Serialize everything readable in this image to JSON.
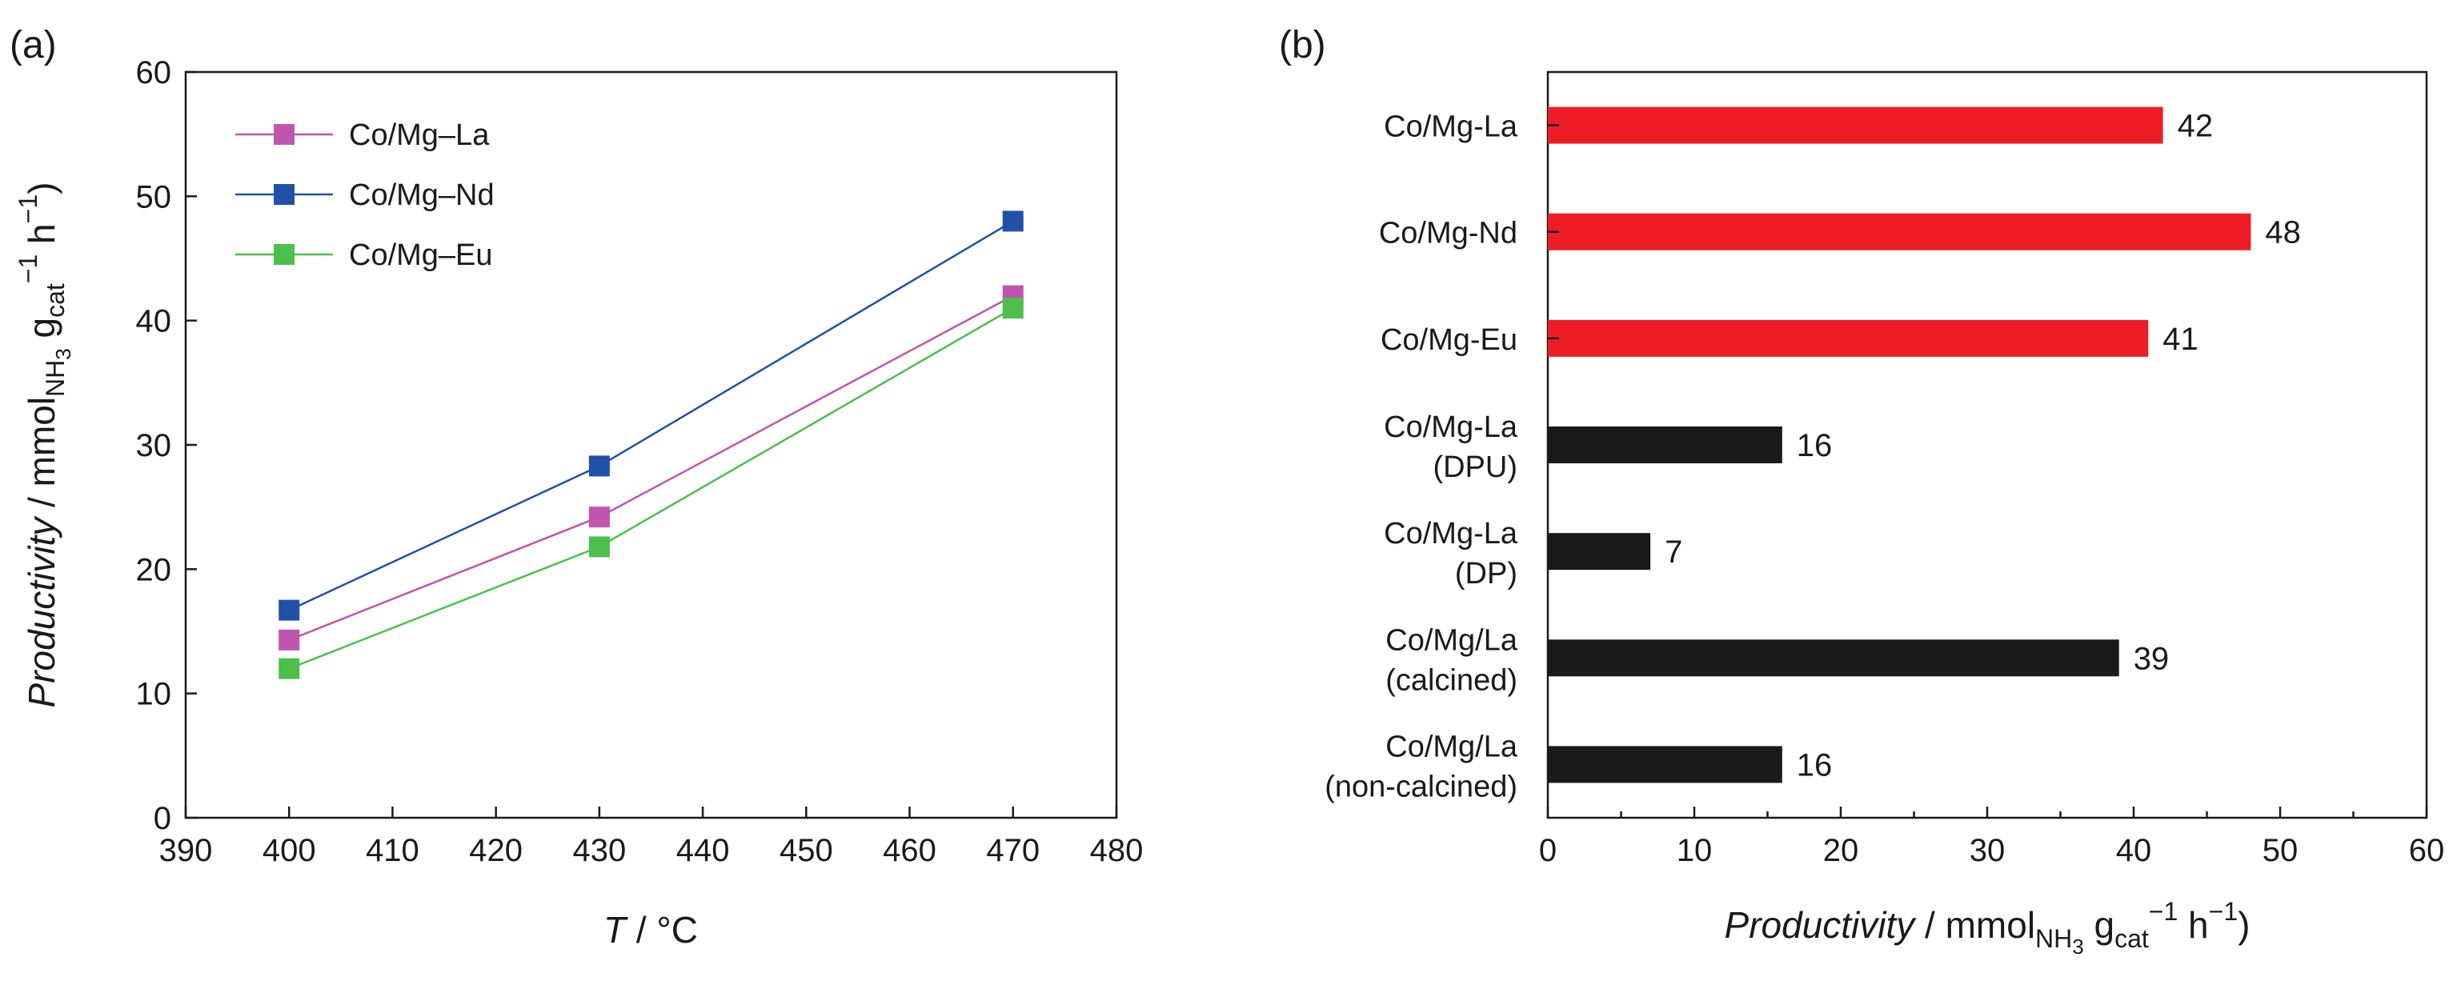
{
  "chart_data": [
    {
      "panel": "(a)",
      "type": "line",
      "x": [
        400,
        430,
        470
      ],
      "xlim": [
        390,
        480
      ],
      "ylim": [
        0,
        60
      ],
      "xticks": [
        390,
        400,
        410,
        420,
        430,
        440,
        450,
        460,
        470,
        480
      ],
      "yticks": [
        0,
        10,
        20,
        30,
        40,
        50,
        60
      ],
      "xlabel": "T / °C",
      "xlabel_parts": {
        "var": "T",
        "rest": " / °C"
      },
      "ylabel": "Productivity / mmolNH3 gcat−1 h−1",
      "ylabel_parts": {
        "var": "Productivity",
        "unit": " / mmol",
        "sub1": "NH",
        "sub1b": "3",
        "g": " g",
        "sub2": "cat",
        "sup": "−1",
        "rest": " h",
        "sup2": "−1",
        "close": ")"
      },
      "legend_position": "top-left",
      "series": [
        {
          "name": "Co/Mg–La",
          "color": "#c055b0",
          "values": [
            14.3,
            24.2,
            42.0
          ]
        },
        {
          "name": "Co/Mg–Nd",
          "color": "#2150a8",
          "values": [
            16.7,
            28.3,
            48.0
          ]
        },
        {
          "name": "Co/Mg–Eu",
          "color": "#4cbf4c",
          "values": [
            12.0,
            21.8,
            41.0
          ]
        }
      ]
    },
    {
      "panel": "(b)",
      "type": "bar",
      "orientation": "horizontal",
      "xlim": [
        0,
        60
      ],
      "xticks": [
        0,
        10,
        20,
        30,
        40,
        50,
        60
      ],
      "xlabel": "Productivity / mmolNH3 gcat−1 h−1)",
      "xlabel_parts": {
        "var": "Productivity",
        "unit": " / mmol",
        "sub1": "NH",
        "sub1b": "3",
        "g": " g",
        "sub2": "cat",
        "sup": "−1",
        "rest": " h",
        "sup2": "−1",
        "close": ")"
      },
      "categories": [
        {
          "line1": "Co/Mg-La",
          "line2": ""
        },
        {
          "line1": "Co/Mg-Nd",
          "line2": ""
        },
        {
          "line1": "Co/Mg-Eu",
          "line2": ""
        },
        {
          "line1": "Co/Mg-La",
          "line2": "(DPU)"
        },
        {
          "line1": "Co/Mg-La",
          "line2": "(DP)"
        },
        {
          "line1": "Co/Mg/La",
          "line2": "(calcined)"
        },
        {
          "line1": "Co/Mg/La",
          "line2": "(non-calcined)"
        }
      ],
      "values": [
        42,
        48,
        41,
        16,
        7,
        39,
        16
      ],
      "value_labels": [
        "42",
        "48",
        "41",
        "16",
        "7",
        "39",
        "16"
      ],
      "colors": [
        "#ee1c25",
        "#ee1c25",
        "#ee1c25",
        "#1a1a1a",
        "#1a1a1a",
        "#1a1a1a",
        "#1a1a1a"
      ]
    }
  ]
}
